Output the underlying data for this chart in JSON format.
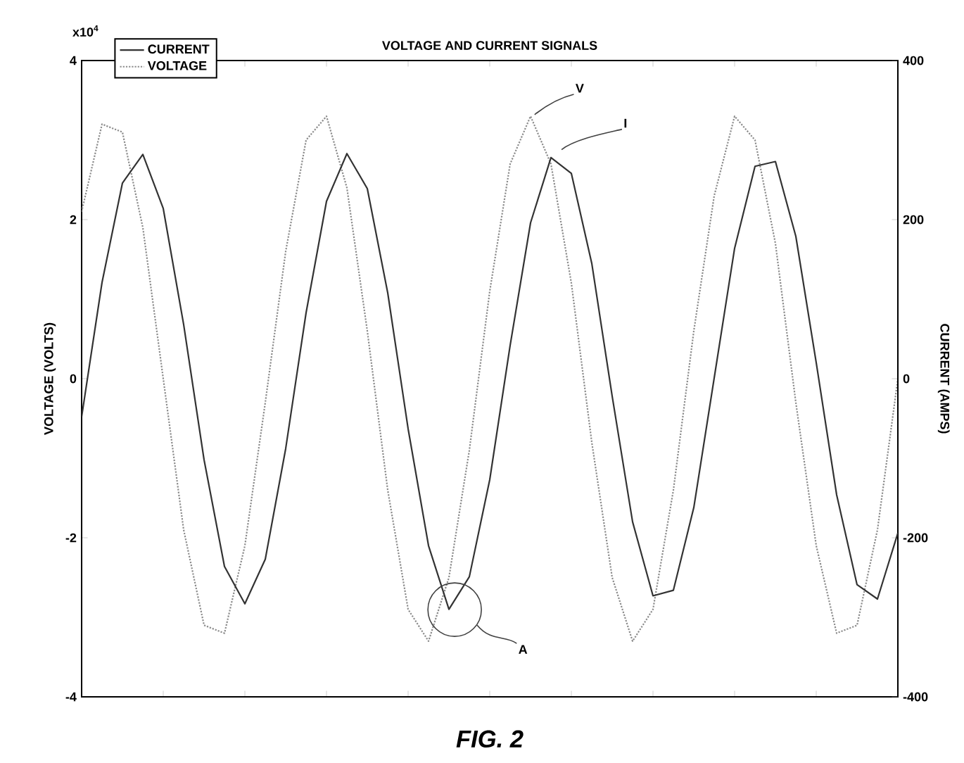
{
  "chart_data": {
    "type": "line",
    "title": "VOLTAGE AND CURRENT SIGNALS",
    "ylabel": "VOLTAGE (VOLTS)",
    "y2label": "CURRENT (AMPS)",
    "categories": [
      null,
      null,
      null,
      null,
      null,
      null,
      null,
      null,
      null,
      null,
      null,
      null,
      null,
      null,
      null,
      null,
      null,
      null,
      null,
      null,
      null,
      null,
      null,
      null,
      null,
      null,
      null,
      null,
      null,
      null,
      null,
      null,
      null,
      null,
      null,
      null,
      null,
      null,
      null,
      null,
      null
    ],
    "ylim": [
      -4,
      4
    ],
    "yticks": [
      -4,
      -2,
      0,
      2,
      4
    ],
    "y2lim": [
      -400,
      400
    ],
    "y2ticks": [
      -400,
      -200,
      0,
      200,
      400
    ],
    "legend": "top left",
    "series": [
      {
        "name": "CURRENT",
        "color": "#333333",
        "line_style": "solid",
        "axis": "y2",
        "values": [
          -48,
          121,
          246,
          282,
          214,
          68,
          -102,
          -236,
          -283,
          -227,
          -88,
          83,
          223,
          283,
          239,
          108,
          -63,
          -210,
          -290,
          -249,
          -127,
          42,
          196,
          278,
          258,
          145,
          -22,
          -180,
          -273,
          -266,
          -162,
          1,
          164,
          267,
          273,
          179,
          20,
          -146,
          -259,
          -277,
          -194
        ]
      },
      {
        "name": "VOLTAGE",
        "color": "#8c8c8c",
        "line_style": "dotted",
        "values": [
          2.1,
          3.2,
          3.1,
          1.9,
          0.0,
          -1.9,
          -3.1,
          -3.2,
          -2.1,
          -0.3,
          1.6,
          3.0,
          3.3,
          2.4,
          0.6,
          -1.4,
          -2.9,
          -3.3,
          -2.5,
          -0.9,
          1.1,
          2.7,
          3.3,
          2.7,
          1.2,
          -0.8,
          -2.5,
          -3.3,
          -2.9,
          -1.4,
          0.6,
          2.3,
          3.3,
          3.0,
          1.7,
          -0.3,
          -2.1,
          -3.2,
          -3.1,
          -1.9,
          0.0
        ]
      }
    ],
    "annotations": [
      "x10$^{4}$",
      "V",
      "I",
      "A",
      "FIG. 2"
    ]
  }
}
